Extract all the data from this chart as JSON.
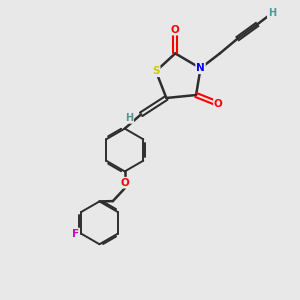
{
  "background_color": "#e8e8e8",
  "bond_color": "#2d2d2d",
  "atom_colors": {
    "S": "#cccc00",
    "N": "#0000ff",
    "O": "#ff0000",
    "F": "#cc00cc",
    "H": "#4d9999",
    "C": "#2d2d2d"
  },
  "figsize": [
    3.0,
    3.0
  ],
  "dpi": 100
}
